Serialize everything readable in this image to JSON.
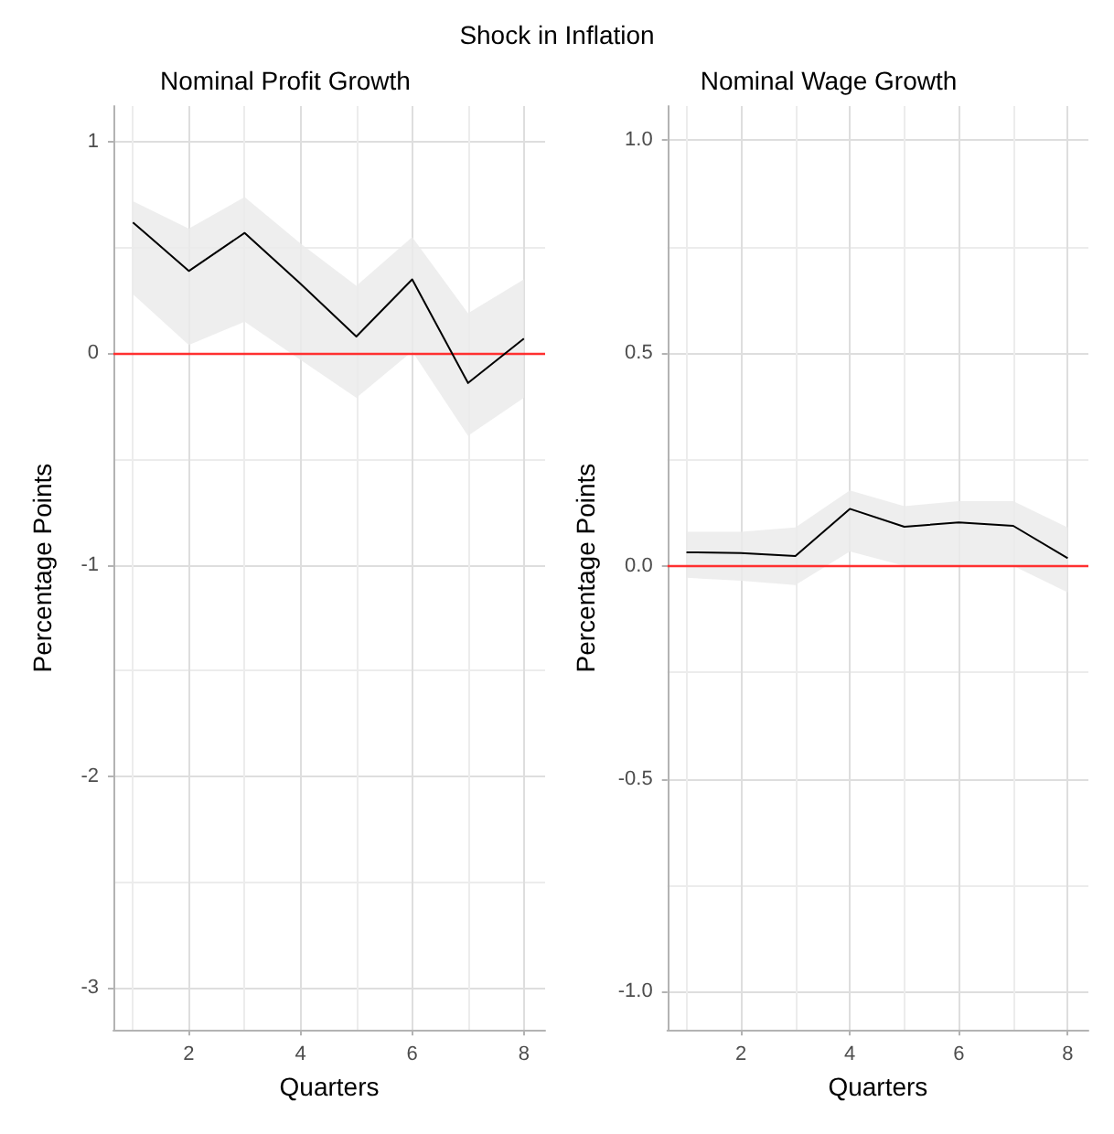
{
  "chart_data": [
    {
      "type": "line",
      "title": "Nominal Profit Growth",
      "annotations": [
        "Shock in Inflation"
      ],
      "xlabel": "Quarters",
      "ylabel": "Percentage Points",
      "x": [
        1,
        2,
        3,
        4,
        5,
        6,
        7,
        8
      ],
      "series": [
        {
          "color": "#000000",
          "values": [
            0.62,
            0.39,
            0.57,
            0.33,
            0.08,
            0.35,
            -0.14,
            0.07
          ],
          "lower": [
            0.28,
            0.04,
            0.15,
            -0.03,
            -0.21,
            0.01,
            -0.39,
            -0.21
          ],
          "upper": [
            0.72,
            0.59,
            0.74,
            0.52,
            0.32,
            0.55,
            0.19,
            0.35
          ]
        }
      ],
      "xlim": [
        0.65,
        8.38
      ],
      "xticks": [
        2,
        4,
        6,
        8
      ],
      "ylim": [
        -3.2,
        1.17
      ],
      "yticks": [
        -3,
        -2,
        -1,
        0,
        1
      ],
      "grid": true,
      "marker": "none",
      "line_style": "solid",
      "ref_lines": [
        {
          "axis": "y",
          "value": 0,
          "color": "#ff3030"
        }
      ]
    },
    {
      "type": "line",
      "title": "Nominal Wage Growth",
      "xlabel": "Quarters",
      "ylabel": "Percentage Points",
      "x": [
        1,
        2,
        3,
        4,
        5,
        6,
        7,
        8
      ],
      "series": [
        {
          "color": "#000000",
          "values": [
            0.032,
            0.03,
            0.023,
            0.134,
            0.092,
            0.102,
            0.094,
            0.018
          ],
          "lower": [
            -0.028,
            -0.035,
            -0.045,
            0.034,
            0.0,
            0.0,
            0.0,
            -0.062
          ],
          "upper": [
            0.08,
            0.08,
            0.09,
            0.177,
            0.14,
            0.152,
            0.152,
            0.09
          ]
        }
      ],
      "xlim": [
        0.65,
        8.38
      ],
      "xticks": [
        2,
        4,
        6,
        8
      ],
      "ylim": [
        -1.09,
        1.08
      ],
      "yticks": [
        {
          "value": -1,
          "label": "-1.0"
        },
        {
          "value": -0.5,
          "label": "-0.5"
        },
        {
          "value": 0,
          "label": "0.0"
        },
        {
          "value": 0.5,
          "label": "0.5"
        },
        {
          "value": 1,
          "label": "1.0"
        }
      ],
      "grid": true,
      "marker": "none",
      "line_style": "solid",
      "ref_lines": [
        {
          "axis": "y",
          "value": 0,
          "color": "#ff3030"
        }
      ]
    }
  ]
}
